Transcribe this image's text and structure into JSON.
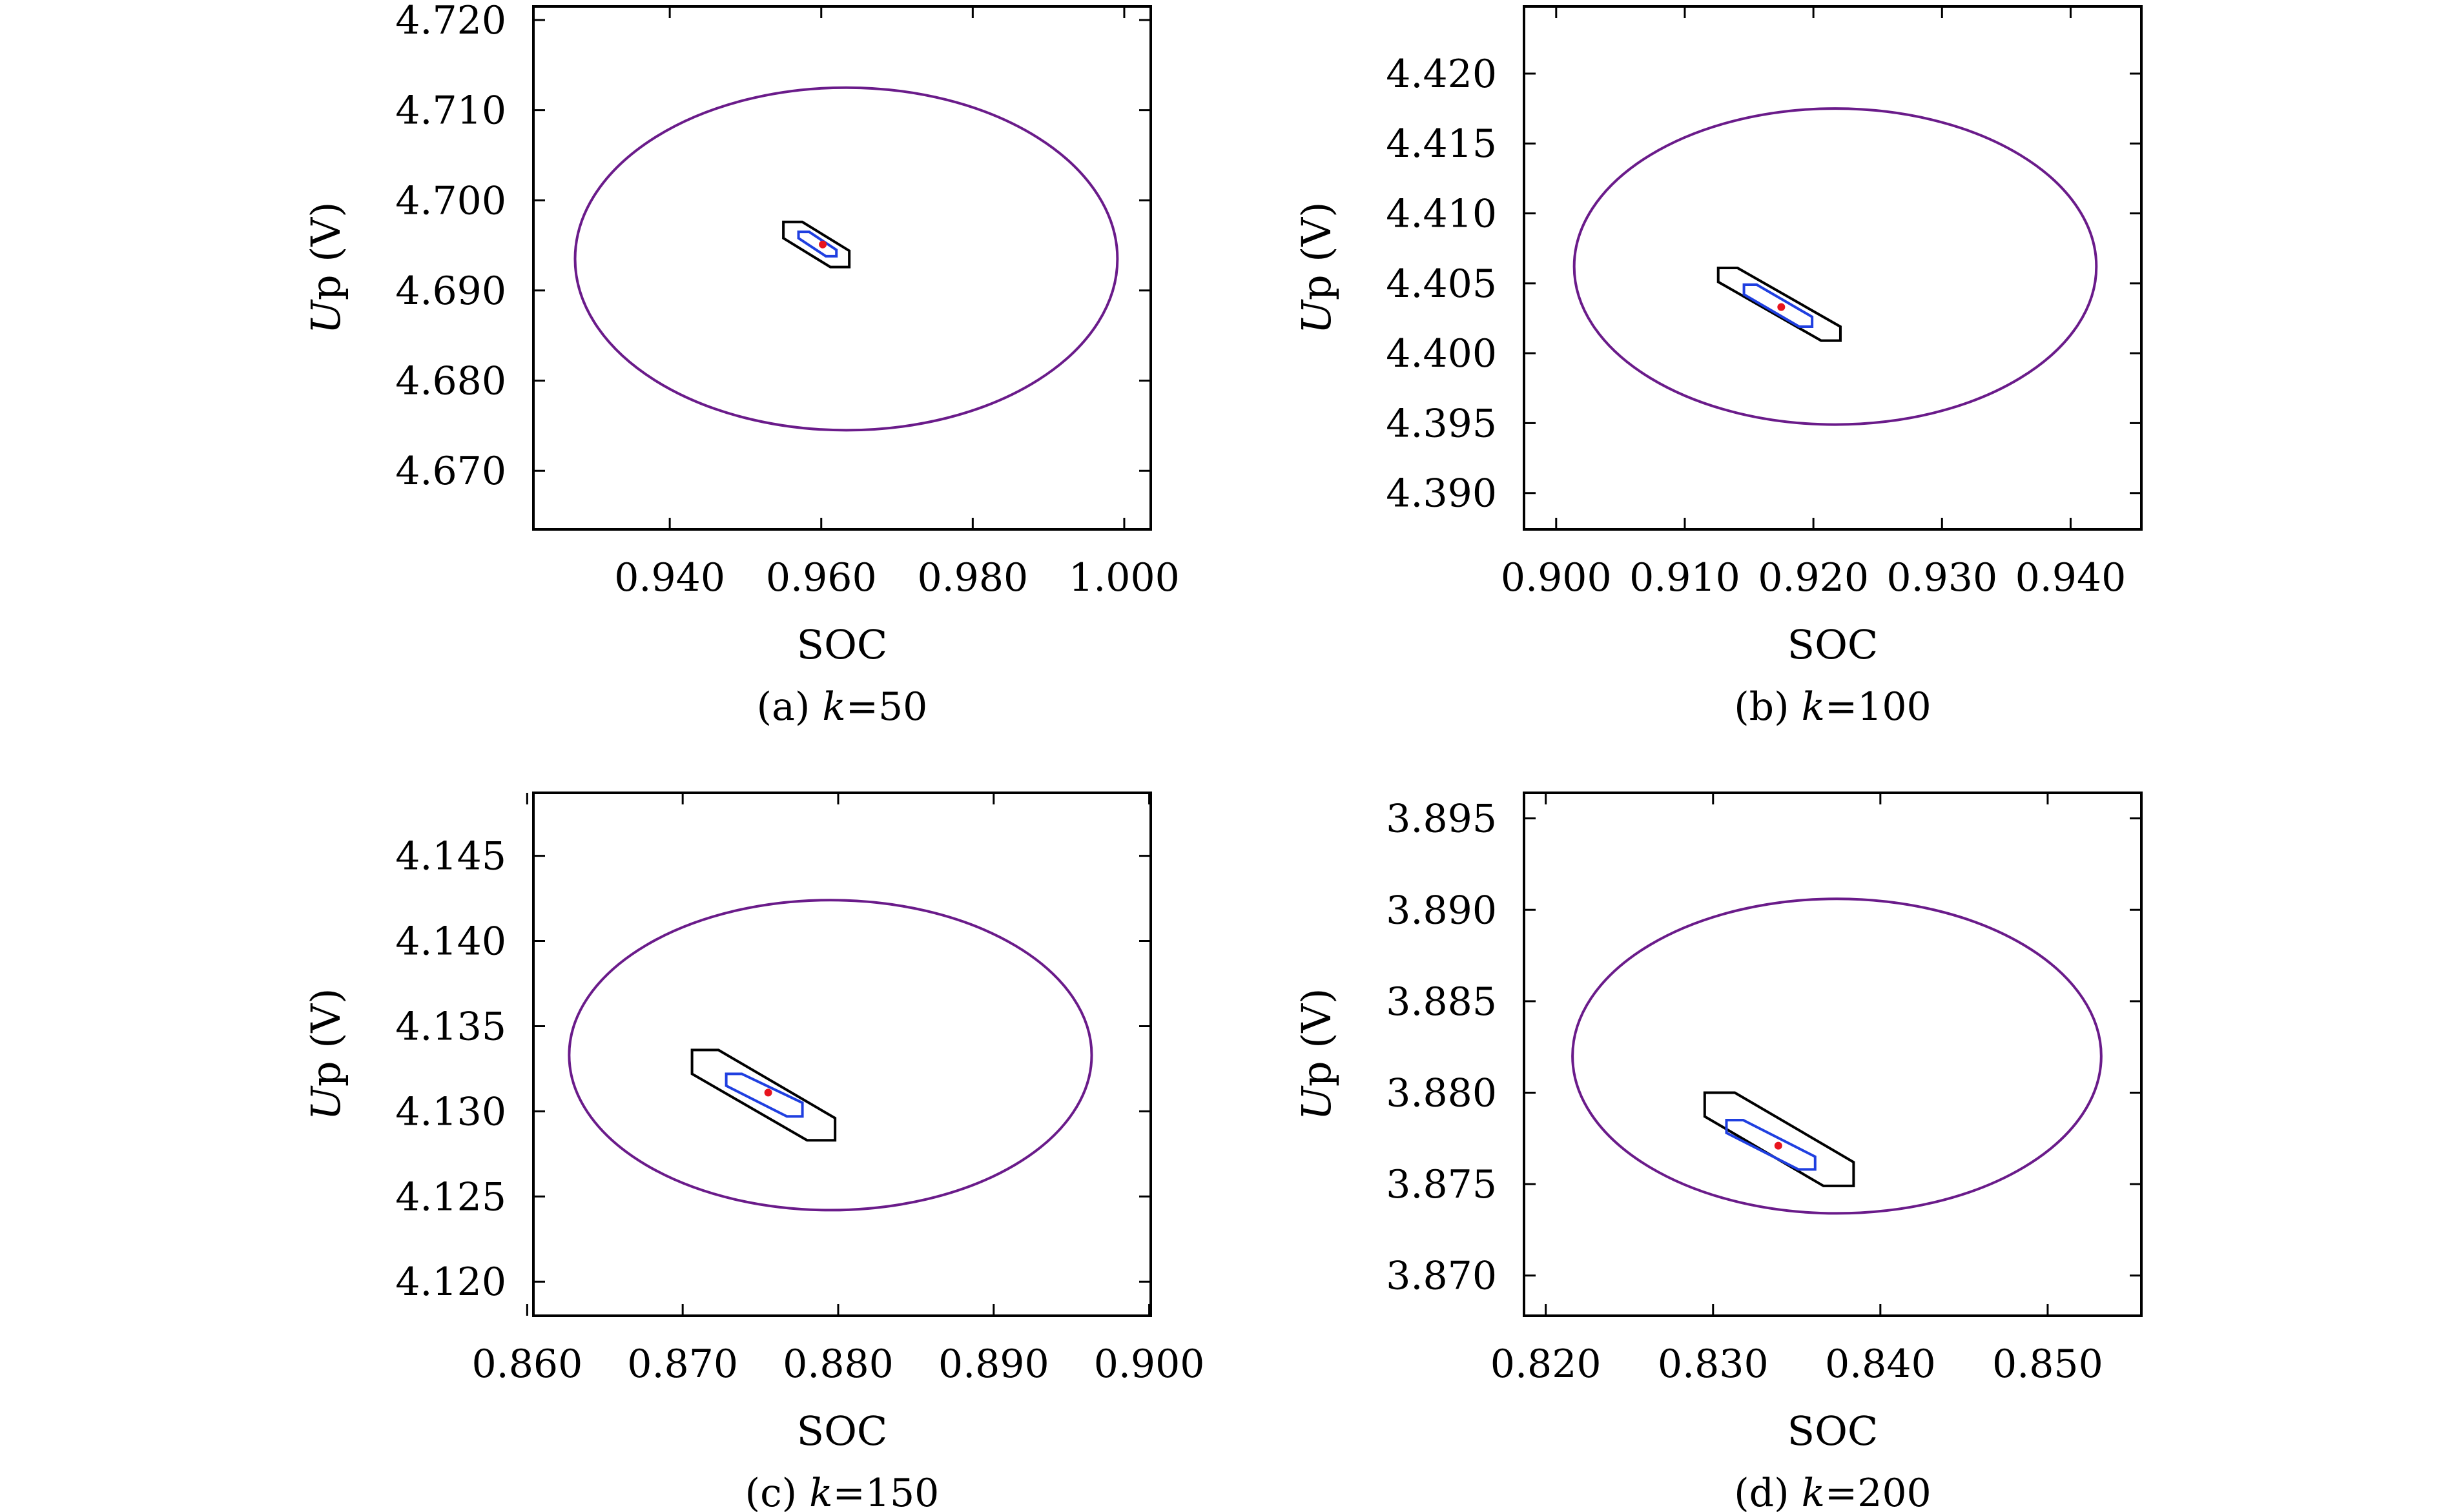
{
  "figure": {
    "y_axis_label_italic": "U",
    "y_axis_label_rest": "p (V)",
    "x_axis_label": "SOC",
    "caption_equals": "="
  },
  "colors": {
    "outer_ellipse": "#6a1b8a",
    "outer_polygon": "#000000",
    "inner_polygon": "#1f3fe0",
    "point": "#e8141e",
    "frame": "#000000"
  },
  "chart_data": [
    {
      "type": "scatter",
      "panel": "a",
      "caption_prefix": "(a) ",
      "caption_var": "k",
      "caption_value": "50",
      "xlabel": "SOC",
      "ylabel": "Up (V)",
      "xlim": [
        0.922,
        1.0035
      ],
      "ylim": [
        4.6635,
        4.7215
      ],
      "xticks": [
        0.94,
        0.96,
        0.98,
        1.0
      ],
      "yticks": [
        4.67,
        4.68,
        4.69,
        4.7,
        4.71,
        4.72
      ],
      "xtick_labels": [
        "0.940",
        "0.960",
        "0.980",
        "1.000"
      ],
      "ytick_labels": [
        "4.670",
        "4.680",
        "4.690",
        "4.700",
        "4.710",
        "4.720"
      ],
      "ellipse": {
        "cx": 0.9633,
        "cy": 4.6935,
        "rx": 0.0358,
        "ry": 0.019
      },
      "outer_polygon": [
        [
          0.955,
          4.6976
        ],
        [
          0.9575,
          4.6976
        ],
        [
          0.9637,
          4.6944
        ],
        [
          0.9637,
          4.6926
        ],
        [
          0.9612,
          4.6926
        ],
        [
          0.955,
          4.6958
        ]
      ],
      "inner_polygon": [
        [
          0.957,
          4.6965
        ],
        [
          0.9584,
          4.6965
        ],
        [
          0.962,
          4.6945
        ],
        [
          0.962,
          4.6938
        ],
        [
          0.9606,
          4.6938
        ],
        [
          0.957,
          4.6958
        ]
      ],
      "point": [
        0.9602,
        4.6951
      ]
    },
    {
      "type": "scatter",
      "panel": "b",
      "caption_prefix": "(b) ",
      "caption_var": "k",
      "caption_value": "100",
      "xlabel": "SOC",
      "ylabel": "Up (V)",
      "xlim": [
        0.8975,
        0.9455
      ],
      "ylim": [
        4.3874,
        4.4248
      ],
      "xticks": [
        0.9,
        0.91,
        0.92,
        0.93,
        0.94
      ],
      "yticks": [
        4.39,
        4.395,
        4.4,
        4.405,
        4.41,
        4.415,
        4.42
      ],
      "xtick_labels": [
        "0.900",
        "0.910",
        "0.920",
        "0.930",
        "0.940"
      ],
      "ytick_labels": [
        "4.390",
        "4.395",
        "4.400",
        "4.405",
        "4.410",
        "4.415",
        "4.420"
      ],
      "ellipse": {
        "cx": 0.9217,
        "cy": 4.4062,
        "rx": 0.0203,
        "ry": 0.0113
      },
      "outer_polygon": [
        [
          0.9126,
          4.4061
        ],
        [
          0.9141,
          4.4061
        ],
        [
          0.9221,
          4.4019
        ],
        [
          0.9221,
          4.4009
        ],
        [
          0.9206,
          4.4009
        ],
        [
          0.9126,
          4.4051
        ]
      ],
      "inner_polygon": [
        [
          0.9146,
          4.4049
        ],
        [
          0.9156,
          4.4049
        ],
        [
          0.9199,
          4.4026
        ],
        [
          0.9199,
          4.4019
        ],
        [
          0.9189,
          4.4019
        ],
        [
          0.9146,
          4.4042
        ]
      ],
      "point": [
        0.9175,
        4.4033
      ]
    },
    {
      "type": "scatter",
      "panel": "c",
      "caption_prefix": "(c) ",
      "caption_var": "k",
      "caption_value": "150",
      "xlabel": "SOC",
      "ylabel": "Up (V)",
      "xlim": [
        0.8604,
        0.9001
      ],
      "ylim": [
        4.118,
        4.1487
      ],
      "xticks": [
        0.86,
        0.87,
        0.88,
        0.89,
        0.9
      ],
      "yticks": [
        4.12,
        4.125,
        4.13,
        4.135,
        4.14,
        4.145
      ],
      "xtick_labels": [
        "0.860",
        "0.870",
        "0.880",
        "0.890",
        "0.900"
      ],
      "ytick_labels": [
        "4.120",
        "4.125",
        "4.130",
        "4.135",
        "4.140",
        "4.145"
      ],
      "ellipse": {
        "cx": 0.8795,
        "cy": 4.1333,
        "rx": 0.0168,
        "ry": 0.0091
      },
      "outer_polygon": [
        [
          0.8706,
          4.1336
        ],
        [
          0.8723,
          4.1336
        ],
        [
          0.8798,
          4.1296
        ],
        [
          0.8798,
          4.1283
        ],
        [
          0.878,
          4.1283
        ],
        [
          0.8706,
          4.1322
        ]
      ],
      "inner_polygon": [
        [
          0.8728,
          4.1322
        ],
        [
          0.8738,
          4.1322
        ],
        [
          0.8777,
          4.1305
        ],
        [
          0.8777,
          4.1297
        ],
        [
          0.8767,
          4.1297
        ],
        [
          0.8728,
          4.1315
        ]
      ],
      "point": [
        0.8755,
        4.1311
      ]
    },
    {
      "type": "scatter",
      "panel": "d",
      "caption_prefix": "(d) ",
      "caption_var": "k",
      "caption_value": "200",
      "xlabel": "SOC",
      "ylabel": "Up (V)",
      "xlim": [
        0.8187,
        0.8556
      ],
      "ylim": [
        3.8678,
        3.8964
      ],
      "xticks": [
        0.82,
        0.83,
        0.84,
        0.85
      ],
      "yticks": [
        3.87,
        3.875,
        3.88,
        3.885,
        3.89,
        3.895
      ],
      "xtick_labels": [
        "0.820",
        "0.830",
        "0.840",
        "0.850"
      ],
      "ytick_labels": [
        "3.870",
        "3.875",
        "3.880",
        "3.885",
        "3.890",
        "3.895"
      ],
      "ellipse": {
        "cx": 0.8374,
        "cy": 3.882,
        "rx": 0.0158,
        "ry": 0.0086
      },
      "outer_polygon": [
        [
          0.8295,
          3.88
        ],
        [
          0.8313,
          3.88
        ],
        [
          0.8384,
          3.8762
        ],
        [
          0.8384,
          3.8749
        ],
        [
          0.8366,
          3.8749
        ],
        [
          0.8295,
          3.8787
        ]
      ],
      "inner_polygon": [
        [
          0.8308,
          3.8785
        ],
        [
          0.8318,
          3.8785
        ],
        [
          0.8361,
          3.8765
        ],
        [
          0.8361,
          3.8758
        ],
        [
          0.8351,
          3.8758
        ],
        [
          0.8308,
          3.8778
        ]
      ],
      "point": [
        0.8339,
        3.8771
      ]
    }
  ]
}
